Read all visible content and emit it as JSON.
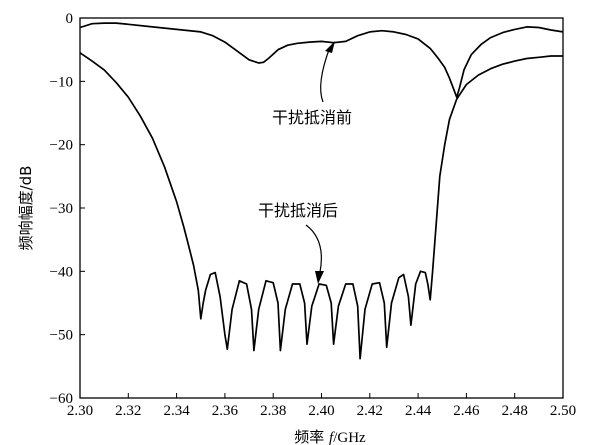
{
  "chart_data": {
    "type": "line",
    "xlabel": {
      "prefix": "频率 ",
      "var": "f",
      "unit": "/GHz"
    },
    "ylabel": "频响幅度/dB",
    "xlim": [
      2.3,
      2.5
    ],
    "ylim": [
      -60,
      0
    ],
    "x_ticks": [
      "2.30",
      "2.32",
      "2.34",
      "2.36",
      "2.38",
      "2.40",
      "2.42",
      "2.44",
      "2.46",
      "2.48",
      "2.50"
    ],
    "y_ticks": [
      "0",
      "−10",
      "−20",
      "−30",
      "−40",
      "−50",
      "−60"
    ],
    "grid": false,
    "series": [
      {
        "key": "before",
        "color": "#000000",
        "x": [
          2.3,
          2.305,
          2.31,
          2.315,
          2.32,
          2.33,
          2.34,
          2.35,
          2.355,
          2.36,
          2.365,
          2.37,
          2.374,
          2.376,
          2.378,
          2.382,
          2.386,
          2.39,
          2.395,
          2.4,
          2.405,
          2.41,
          2.415,
          2.42,
          2.425,
          2.43,
          2.435,
          2.44,
          2.445,
          2.448,
          2.451,
          2.453,
          2.455,
          2.456,
          2.457,
          2.459,
          2.462,
          2.466,
          2.47,
          2.475,
          2.48,
          2.485,
          2.49,
          2.495,
          2.5
        ],
        "y": [
          -1.5,
          -0.9,
          -0.8,
          -0.8,
          -1.0,
          -1.4,
          -1.8,
          -2.2,
          -2.8,
          -3.8,
          -5.2,
          -6.6,
          -7.1,
          -7.0,
          -6.4,
          -5.0,
          -4.3,
          -4.0,
          -3.8,
          -3.7,
          -3.9,
          -3.7,
          -2.8,
          -2.2,
          -2.0,
          -2.2,
          -2.6,
          -3.3,
          -4.8,
          -6.2,
          -7.8,
          -9.5,
          -11.5,
          -12.5,
          -11.2,
          -8.2,
          -5.8,
          -4.2,
          -3.1,
          -2.3,
          -1.8,
          -1.4,
          -1.5,
          -1.9,
          -2.2
        ]
      },
      {
        "key": "after",
        "color": "#000000",
        "x": [
          2.3,
          2.305,
          2.31,
          2.315,
          2.32,
          2.325,
          2.33,
          2.335,
          2.34,
          2.343,
          2.345,
          2.347,
          2.349,
          2.35,
          2.351,
          2.352,
          2.354,
          2.356,
          2.358,
          2.36,
          2.361,
          2.363,
          2.366,
          2.369,
          2.371,
          2.372,
          2.374,
          2.377,
          2.38,
          2.382,
          2.383,
          2.385,
          2.388,
          2.391,
          2.393,
          2.394,
          2.396,
          2.399,
          2.402,
          2.404,
          2.405,
          2.407,
          2.41,
          2.413,
          2.415,
          2.416,
          2.418,
          2.421,
          2.424,
          2.426,
          2.427,
          2.429,
          2.432,
          2.434,
          2.436,
          2.437,
          2.439,
          2.441,
          2.443,
          2.444,
          2.445,
          2.446,
          2.447,
          2.448,
          2.449,
          2.451,
          2.453,
          2.456,
          2.46,
          2.465,
          2.47,
          2.475,
          2.48,
          2.485,
          2.49,
          2.495,
          2.5
        ],
        "y": [
          -5.5,
          -6.8,
          -8.2,
          -10.2,
          -12.5,
          -15.5,
          -19.0,
          -23.5,
          -29.0,
          -33.0,
          -36.0,
          -39.0,
          -43.0,
          -47.5,
          -45.0,
          -43.0,
          -40.5,
          -40.2,
          -44.0,
          -50.0,
          -52.3,
          -46.0,
          -41.5,
          -42.0,
          -46.0,
          -52.5,
          -46.0,
          -41.5,
          -41.8,
          -45.0,
          -52.5,
          -46.0,
          -42.0,
          -42.0,
          -45.0,
          -51.5,
          -45.5,
          -42.0,
          -42.2,
          -45.0,
          -51.5,
          -45.5,
          -42.0,
          -42.0,
          -45.5,
          -53.8,
          -46.0,
          -42.0,
          -41.8,
          -45.0,
          -52.0,
          -45.0,
          -41.0,
          -40.5,
          -44.0,
          -48.5,
          -42.0,
          -40.0,
          -40.2,
          -42.0,
          -44.5,
          -40.0,
          -35.0,
          -30.0,
          -25.0,
          -20.0,
          -16.0,
          -12.8,
          -10.5,
          -9.0,
          -8.0,
          -7.3,
          -6.8,
          -6.4,
          -6.2,
          -6.0,
          -6.0
        ]
      }
    ],
    "annotations": [
      {
        "key": "before",
        "text": "干扰抵消前"
      },
      {
        "key": "after",
        "text": "干扰抵消后"
      }
    ]
  }
}
